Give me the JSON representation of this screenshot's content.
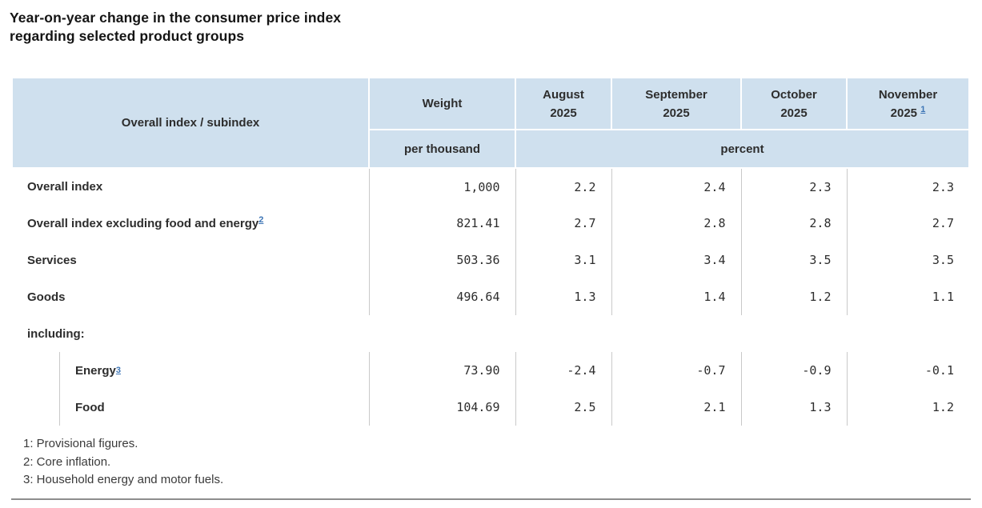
{
  "title": {
    "line1": "Year-on-year change in the consumer price index",
    "line2": "regarding selected product groups"
  },
  "colors": {
    "header_bg": "#cfe0ee",
    "link_blue": "#3c74b5",
    "grid_gray": "#c9c9c9",
    "rule_gray": "#8d8d8d",
    "text": "#2d2d2d"
  },
  "table": {
    "corner_header": "Overall index / subindex",
    "weight_header": "Weight",
    "weight_unit": "per thousand",
    "percent_unit": "percent",
    "months": [
      {
        "label": "August",
        "year": "2025",
        "footnote": ""
      },
      {
        "label": "September",
        "year": "2025",
        "footnote": ""
      },
      {
        "label": "October",
        "year": "2025",
        "footnote": ""
      },
      {
        "label": "November",
        "year": "2025",
        "footnote": "1"
      }
    ],
    "rows": [
      {
        "type": "data",
        "label": "Overall index",
        "footnote": "",
        "indent": false,
        "weight": "1,000",
        "values": [
          "2.2",
          "2.4",
          "2.3",
          "2.3"
        ]
      },
      {
        "type": "data",
        "label": "Overall index excluding food and energy",
        "footnote": "2",
        "indent": false,
        "weight": "821.41",
        "values": [
          "2.7",
          "2.8",
          "2.8",
          "2.7"
        ]
      },
      {
        "type": "data",
        "label": "Services",
        "footnote": "",
        "indent": false,
        "weight": "503.36",
        "values": [
          "3.1",
          "3.4",
          "3.5",
          "3.5"
        ]
      },
      {
        "type": "data",
        "label": "Goods",
        "footnote": "",
        "indent": false,
        "weight": "496.64",
        "values": [
          "1.3",
          "1.4",
          "1.2",
          "1.1"
        ]
      },
      {
        "type": "section",
        "label": "including:"
      },
      {
        "type": "data",
        "label": "Energy",
        "footnote": "3",
        "indent": true,
        "weight": "73.90",
        "values": [
          "-2.4",
          "-0.7",
          "-0.9",
          "-0.1"
        ]
      },
      {
        "type": "data",
        "label": "Food",
        "footnote": "",
        "indent": true,
        "weight": "104.69",
        "values": [
          "2.5",
          "2.1",
          "1.3",
          "1.2"
        ]
      }
    ]
  },
  "footnotes": [
    "1: Provisional figures.",
    "2: Core inflation.",
    "3: Household energy and motor fuels."
  ],
  "chart_data": {
    "type": "table",
    "title": "Year-on-year change in the consumer price index regarding selected product groups",
    "columns": [
      "Overall index / subindex",
      "Weight (per thousand)",
      "August 2025 (percent)",
      "September 2025 (percent)",
      "October 2025 (percent)",
      "November 2025 (percent)"
    ],
    "rows": [
      [
        "Overall index",
        1000,
        2.2,
        2.4,
        2.3,
        2.3
      ],
      [
        "Overall index excluding food and energy",
        821.41,
        2.7,
        2.8,
        2.8,
        2.7
      ],
      [
        "Services",
        503.36,
        3.1,
        3.4,
        3.5,
        3.5
      ],
      [
        "Goods",
        496.64,
        1.3,
        1.4,
        1.2,
        1.1
      ],
      [
        "Energy",
        73.9,
        -2.4,
        -0.7,
        -0.9,
        -0.1
      ],
      [
        "Food",
        104.69,
        2.5,
        2.1,
        1.3,
        1.2
      ]
    ],
    "notes": [
      "1: Provisional figures.",
      "2: Core inflation.",
      "3: Household energy and motor fuels."
    ]
  }
}
